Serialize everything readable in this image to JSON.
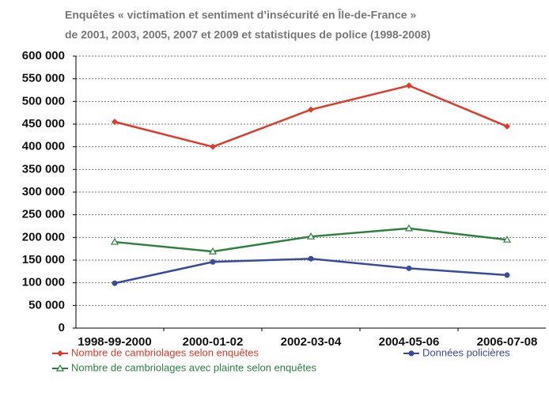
{
  "chart_data": {
    "type": "line",
    "subtitle": [
      "Enquêtes « victimation et sentiment d’insécurité en Île-de-France »",
      "de 2001, 2003, 2005, 2007 et 2009 et statistiques de police (1998-2008)"
    ],
    "categories": [
      "1998-99-2000",
      "2000-01-02",
      "2002-03-04",
      "2004-05-06",
      "2006-07-08"
    ],
    "series": [
      {
        "name": "Nombre de cambriolages selon enquêtes",
        "color": "#e03a2a",
        "marker": "diamond",
        "values": [
          455000,
          400000,
          482000,
          535000,
          445000
        ]
      },
      {
        "name": "Données policières",
        "color": "#3a4a9c",
        "marker": "circle",
        "values": [
          99000,
          146000,
          153000,
          132000,
          117000
        ]
      },
      {
        "name": "Nombre de cambriolages avec plainte selon enquêtes",
        "color": "#2e8040",
        "marker": "triangle",
        "values": [
          190000,
          169000,
          202000,
          220000,
          195000
        ]
      }
    ],
    "ylim": [
      0,
      600000
    ],
    "yticks": [
      0,
      {
        "value": 50000,
        "label": "50 000"
      },
      {
        "value": 100000,
        "label": "100 000"
      },
      {
        "value": 150000,
        "label": "150 000"
      },
      {
        "value": 200000,
        "label": "200 000"
      },
      {
        "value": 250000,
        "label": "250 000"
      },
      {
        "value": 300000,
        "label": "300 000"
      },
      {
        "value": 350000,
        "label": "350 000"
      },
      {
        "value": 400000,
        "label": "400 000"
      },
      {
        "value": 450000,
        "label": "450 000"
      },
      {
        "value": 500000,
        "label": "500 000"
      },
      {
        "value": 550000,
        "label": "550 000"
      },
      {
        "value": 600000,
        "label": "600 000"
      }
    ],
    "grid": true
  }
}
